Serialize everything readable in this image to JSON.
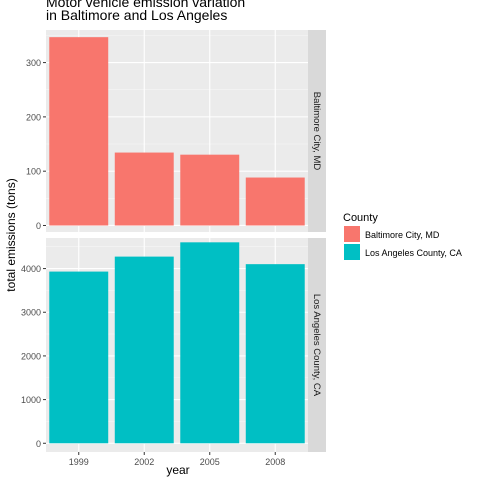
{
  "chart_data": {
    "type": "bar",
    "title": "Motor vehicle emission variation\nin Baltimore and Los Angeles",
    "xlabel": "year",
    "ylabel": "total emissions (tons)",
    "categories": [
      "1999",
      "2002",
      "2005",
      "2008"
    ],
    "legend": {
      "title": "County",
      "position": "right",
      "items": [
        "Baltimore City, MD",
        "Los Angeles County, CA"
      ]
    },
    "grid": true,
    "facets": [
      {
        "name": "Baltimore City, MD",
        "color": "#F8766D",
        "values": [
          346.8,
          134.3,
          130.4,
          88.3
        ],
        "ylim": [
          -12,
          360
        ],
        "yticks": [
          0,
          100,
          200,
          300
        ]
      },
      {
        "name": "Los Angeles County, CA",
        "color": "#00BFC4",
        "values": [
          3931,
          4274,
          4601,
          4101
        ],
        "ylim": [
          -200,
          4700
        ],
        "yticks": [
          0,
          1000,
          2000,
          3000,
          4000
        ]
      }
    ]
  }
}
